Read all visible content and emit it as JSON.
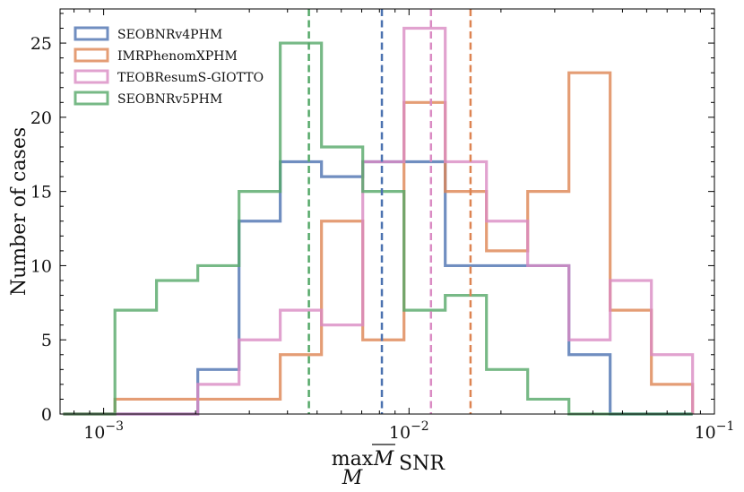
{
  "chart_data": {
    "type": "histogram",
    "title": "",
    "xscale": "log",
    "xlim": [
      0.00072,
      0.1
    ],
    "ylim": [
      0,
      27.3
    ],
    "xlabel": {
      "prefix": "max",
      "subscript_under": "M",
      "main": "M",
      "subscript": "SNR"
    },
    "ylabel": "Number of cases",
    "xticks": [
      {
        "value": 0.001,
        "base": "10",
        "exp": "−3"
      },
      {
        "value": 0.01,
        "base": "10",
        "exp": "−2"
      },
      {
        "value": 0.1,
        "base": "10",
        "exp": "−1"
      }
    ],
    "yticks": [
      {
        "value": 0,
        "label": "0"
      },
      {
        "value": 5,
        "label": "5"
      },
      {
        "value": 10,
        "label": "10"
      },
      {
        "value": 15,
        "label": "15"
      },
      {
        "value": 20,
        "label": "20"
      },
      {
        "value": 25,
        "label": "25"
      }
    ],
    "bin_edges": [
      0.000737,
      0.001089,
      0.00149,
      0.002034,
      0.002776,
      0.003787,
      0.005169,
      0.007055,
      0.009628,
      0.013138,
      0.017929,
      0.024466,
      0.033388,
      0.045559,
      0.062174,
      0.08483
    ],
    "series": [
      {
        "name": "SEOBNRv4PHM",
        "color": "#4c72b0",
        "counts": [
          0,
          0,
          0,
          3,
          13,
          17,
          16,
          17,
          17,
          10,
          10,
          10,
          4,
          0,
          0
        ],
        "median": 0.00815
      },
      {
        "name": "IMRPhenomXPHM",
        "color": "#dd8452",
        "counts": [
          0,
          1,
          1,
          1,
          1,
          4,
          13,
          5,
          21,
          15,
          11,
          15,
          23,
          7,
          2
        ],
        "median": 0.0159
      },
      {
        "name": "TEOBResumS-GIOTTO",
        "color": "#da8bc3",
        "counts": [
          0,
          0,
          0,
          2,
          5,
          7,
          6,
          17,
          26,
          17,
          13,
          10,
          5,
          9,
          4
        ],
        "median": 0.0118
      },
      {
        "name": "SEOBNRv5PHM",
        "color": "#55a868",
        "counts": [
          0,
          7,
          9,
          10,
          15,
          25,
          18,
          15,
          7,
          8,
          3,
          1,
          0,
          0,
          0
        ],
        "median": 0.0047
      }
    ],
    "legend_position": "top-left",
    "grid": false
  }
}
